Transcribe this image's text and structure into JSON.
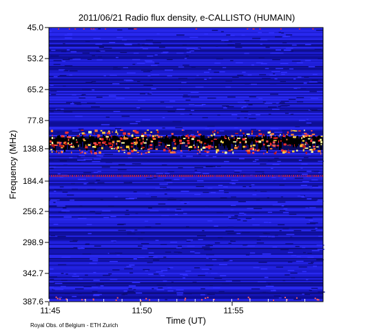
{
  "chart_data": {
    "type": "heatmap",
    "title": "2011/06/21  Radio flux density, e-CALLISTO (HUMAIN)",
    "xlabel": "Time (UT)",
    "ylabel": "Frequency (MHz)",
    "x_range": [
      "11:45",
      "11:59:59"
    ],
    "y_range": [
      45.0,
      387.6
    ],
    "y_axis_inverted": true,
    "x_ticks": [
      "11:45",
      "11:50",
      "11:55"
    ],
    "y_ticks": [
      "45.0",
      "53.2",
      "65.2",
      "77.8",
      "138.8",
      "184.4",
      "256.2",
      "298.9",
      "342.7",
      "387.6"
    ],
    "colormap": [
      "#000000",
      "#0a0a8c",
      "#1c1ce6",
      "#7a1a8a",
      "#ff3030",
      "#ffb030",
      "#ffffa0"
    ],
    "features": [
      {
        "label": "broadband interference band",
        "freq_range_mhz": [
          110,
          150
        ],
        "intensity": "high"
      },
      {
        "label": "narrow persistent line",
        "freq_mhz": 190,
        "intensity": "medium"
      }
    ]
  },
  "footer": "Royal Obs. of Belgium - ETH Zurich"
}
